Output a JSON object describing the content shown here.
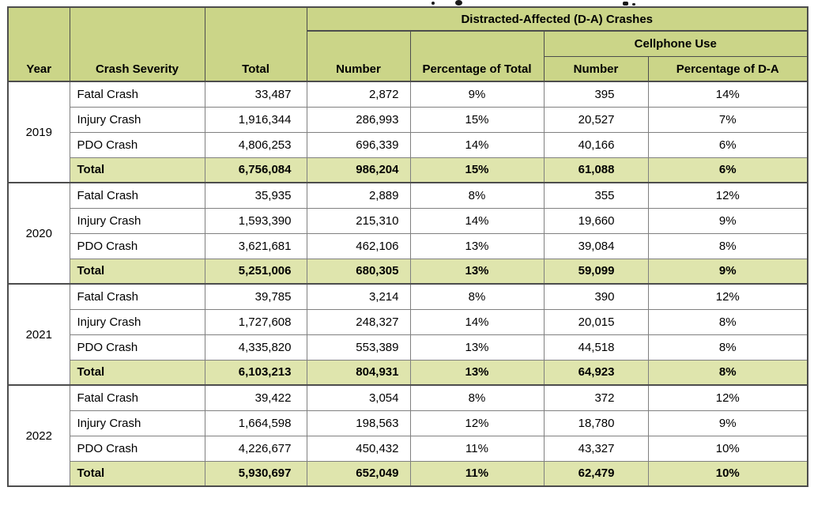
{
  "table": {
    "header": {
      "year": "Year",
      "crash_severity": "Crash Severity",
      "total": "Total",
      "da_group": "Distracted-Affected (D-A) Crashes",
      "da_number": "Number",
      "da_pct_of_total": "Percentage of Total",
      "cellphone_group": "Cellphone Use",
      "cellphone_number": "Number",
      "cellphone_pct_of_da": "Percentage of D-A"
    },
    "groups": [
      {
        "year": "2019",
        "rows": [
          {
            "severity": "Fatal Crash",
            "total": "33,487",
            "da_number": "2,872",
            "da_pct": "9%",
            "cell_number": "395",
            "cell_pct": "14%",
            "is_total": false
          },
          {
            "severity": "Injury Crash",
            "total": "1,916,344",
            "da_number": "286,993",
            "da_pct": "15%",
            "cell_number": "20,527",
            "cell_pct": "7%",
            "is_total": false
          },
          {
            "severity": "PDO Crash",
            "total": "4,806,253",
            "da_number": "696,339",
            "da_pct": "14%",
            "cell_number": "40,166",
            "cell_pct": "6%",
            "is_total": false
          },
          {
            "severity": "Total",
            "total": "6,756,084",
            "da_number": "986,204",
            "da_pct": "15%",
            "cell_number": "61,088",
            "cell_pct": "6%",
            "is_total": true
          }
        ]
      },
      {
        "year": "2020",
        "rows": [
          {
            "severity": "Fatal Crash",
            "total": "35,935",
            "da_number": "2,889",
            "da_pct": "8%",
            "cell_number": "355",
            "cell_pct": "12%",
            "is_total": false
          },
          {
            "severity": "Injury Crash",
            "total": "1,593,390",
            "da_number": "215,310",
            "da_pct": "14%",
            "cell_number": "19,660",
            "cell_pct": "9%",
            "is_total": false
          },
          {
            "severity": "PDO Crash",
            "total": "3,621,681",
            "da_number": "462,106",
            "da_pct": "13%",
            "cell_number": "39,084",
            "cell_pct": "8%",
            "is_total": false
          },
          {
            "severity": "Total",
            "total": "5,251,006",
            "da_number": "680,305",
            "da_pct": "13%",
            "cell_number": "59,099",
            "cell_pct": "9%",
            "is_total": true
          }
        ]
      },
      {
        "year": "2021",
        "rows": [
          {
            "severity": "Fatal Crash",
            "total": "39,785",
            "da_number": "3,214",
            "da_pct": "8%",
            "cell_number": "390",
            "cell_pct": "12%",
            "is_total": false
          },
          {
            "severity": "Injury Crash",
            "total": "1,727,608",
            "da_number": "248,327",
            "da_pct": "14%",
            "cell_number": "20,015",
            "cell_pct": "8%",
            "is_total": false
          },
          {
            "severity": "PDO Crash",
            "total": "4,335,820",
            "da_number": "553,389",
            "da_pct": "13%",
            "cell_number": "44,518",
            "cell_pct": "8%",
            "is_total": false
          },
          {
            "severity": "Total",
            "total": "6,103,213",
            "da_number": "804,931",
            "da_pct": "13%",
            "cell_number": "64,923",
            "cell_pct": "8%",
            "is_total": true
          }
        ]
      },
      {
        "year": "2022",
        "rows": [
          {
            "severity": "Fatal Crash",
            "total": "39,422",
            "da_number": "3,054",
            "da_pct": "8%",
            "cell_number": "372",
            "cell_pct": "12%",
            "is_total": false
          },
          {
            "severity": "Injury Crash",
            "total": "1,664,598",
            "da_number": "198,563",
            "da_pct": "12%",
            "cell_number": "18,780",
            "cell_pct": "9%",
            "is_total": false
          },
          {
            "severity": "PDO Crash",
            "total": "4,226,677",
            "da_number": "450,432",
            "da_pct": "11%",
            "cell_number": "43,327",
            "cell_pct": "10%",
            "is_total": false
          },
          {
            "severity": "Total",
            "total": "5,930,697",
            "da_number": "652,049",
            "da_pct": "11%",
            "cell_number": "62,479",
            "cell_pct": "10%",
            "is_total": true
          }
        ]
      }
    ]
  },
  "colors": {
    "header_bg": "#cbd588",
    "total_row_bg": "#dfe5ad",
    "border_dark": "#4d4d4d",
    "border_light": "#808080"
  }
}
